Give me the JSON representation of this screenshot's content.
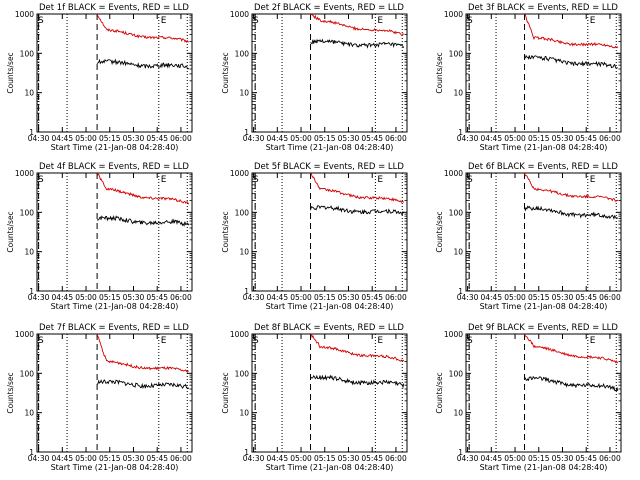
{
  "chart_data": [
    {
      "title": "Det 1f BLACK = Events, RED = LLD",
      "ylabel": "Counts/sec",
      "xlabel": "Start Time (21-Jan-08 04:28:40)",
      "xticks": [
        "04:30",
        "04:45",
        "05:00",
        "05:15",
        "05:30",
        "05:45",
        "06:00"
      ],
      "corner_label_left": "S",
      "corner_label_right": "E",
      "occultation_markers": [
        "04:30",
        "04:48",
        "05:06",
        "05:46"
      ]
    },
    {
      "title": "Det 2f BLACK = Events, RED = LLD",
      "ylabel": "Counts/sec",
      "xlabel": "Start Time (21-Jan-08 04:28:40)",
      "xticks": [
        "04:30",
        "04:45",
        "05:00",
        "05:15",
        "05:30",
        "05:45",
        "06:00"
      ],
      "corner_label_left": "S",
      "corner_label_right": "E",
      "occultation_markers": [
        "04:31",
        "04:48",
        "05:07",
        "05:47"
      ]
    },
    {
      "title": "Det 3f BLACK = Events, RED = LLD",
      "ylabel": "Counts/sec",
      "xlabel": "Start Time (21-Jan-08 04:28:40)",
      "xticks": [
        "04:30",
        "04:45",
        "05:00",
        "05:15",
        "05:30",
        "05:45",
        "06:00"
      ],
      "corner_label_left": "S",
      "corner_label_right": "E",
      "occultation_markers": [
        "04:31",
        "04:48",
        "05:07",
        "05:46"
      ]
    },
    {
      "title": "Det 4f BLACK = Events, RED = LLD",
      "ylabel": "Counts/sec",
      "xlabel": "Start Time (21-Jan-08 04:28:40)",
      "xticks": [
        "04:30",
        "04:45",
        "05:00",
        "05:15",
        "05:30",
        "05:45",
        "06:00"
      ],
      "corner_label_left": "S",
      "corner_label_right": "E",
      "occultation_markers": [
        "04:30",
        "04:48",
        "05:06",
        "05:46"
      ]
    },
    {
      "title": "Det 5f BLACK = Events, RED = LLD",
      "ylabel": "Counts/sec",
      "xlabel": "Start Time (21-Jan-08 04:28:40)",
      "xticks": [
        "04:30",
        "04:45",
        "05:00",
        "05:15",
        "05:30",
        "05:45",
        "06:00"
      ],
      "corner_label_left": "S",
      "corner_label_right": "E",
      "occultation_markers": [
        "04:31",
        "04:48",
        "05:07",
        "05:47"
      ]
    },
    {
      "title": "Det 6f BLACK = Events, RED = LLD",
      "ylabel": "Counts/sec",
      "xlabel": "Start Time (21-Jan-08 04:28:40)",
      "xticks": [
        "04:30",
        "04:45",
        "05:00",
        "05:15",
        "05:30",
        "05:45",
        "06:00"
      ],
      "corner_label_left": "S",
      "corner_label_right": "E",
      "occultation_markers": [
        "04:31",
        "04:48",
        "05:07",
        "05:46"
      ]
    },
    {
      "title": "Det 7f BLACK = Events, RED = LLD",
      "ylabel": "Counts/sec",
      "xlabel": "Start Time (21-Jan-08 04:28:40)",
      "xticks": [
        "04:30",
        "04:45",
        "05:00",
        "05:15",
        "05:30",
        "05:45",
        "06:00"
      ],
      "corner_label_left": "S",
      "corner_label_right": "E",
      "occultation_markers": [
        "04:30",
        "04:48",
        "05:06",
        "05:46"
      ]
    },
    {
      "title": "Det 8f BLACK = Events, RED = LLD",
      "ylabel": "Counts/sec",
      "xlabel": "Start Time (21-Jan-08 04:28:40)",
      "xticks": [
        "04:30",
        "04:45",
        "05:00",
        "05:15",
        "05:30",
        "05:45",
        "06:00"
      ],
      "corner_label_left": "S",
      "corner_label_right": "E",
      "occultation_markers": [
        "04:31",
        "04:48",
        "05:07",
        "05:47"
      ]
    },
    {
      "title": "Det 9f BLACK = Events, RED = LLD",
      "ylabel": "Counts/sec",
      "xlabel": "Start Time (21-Jan-08 04:28:40)",
      "xticks": [
        "04:30",
        "04:45",
        "05:00",
        "05:15",
        "05:30",
        "05:45",
        "06:00"
      ],
      "corner_label_left": "S",
      "corner_label_right": "E",
      "occultation_markers": [
        "04:31",
        "04:48",
        "05:07",
        "05:46"
      ]
    }
  ],
  "series_styles": {
    "events": "#000000",
    "lld": "#d40000"
  },
  "yticks": [
    "1",
    "10",
    "100",
    "1000"
  ],
  "ylim": [
    1,
    1000
  ],
  "yscale": "log",
  "xlim_minutes": [
    -1,
    97
  ],
  "dashed_marker_minute": [
    37,
    36,
    36,
    37,
    36,
    36,
    37,
    36,
    36
  ],
  "series_levels": {
    "events": [
      [
        60,
        45
      ],
      [
        200,
        150
      ],
      [
        80,
        45
      ],
      [
        70,
        50
      ],
      [
        130,
        95
      ],
      [
        130,
        70
      ],
      [
        60,
        45
      ],
      [
        80,
        50
      ],
      [
        75,
        40
      ]
    ],
    "lld": [
      [
        400,
        200
      ],
      [
        700,
        300
      ],
      [
        250,
        140
      ],
      [
        400,
        170
      ],
      [
        400,
        180
      ],
      [
        400,
        200
      ],
      [
        200,
        110
      ],
      [
        500,
        210
      ],
      [
        500,
        190
      ]
    ]
  }
}
